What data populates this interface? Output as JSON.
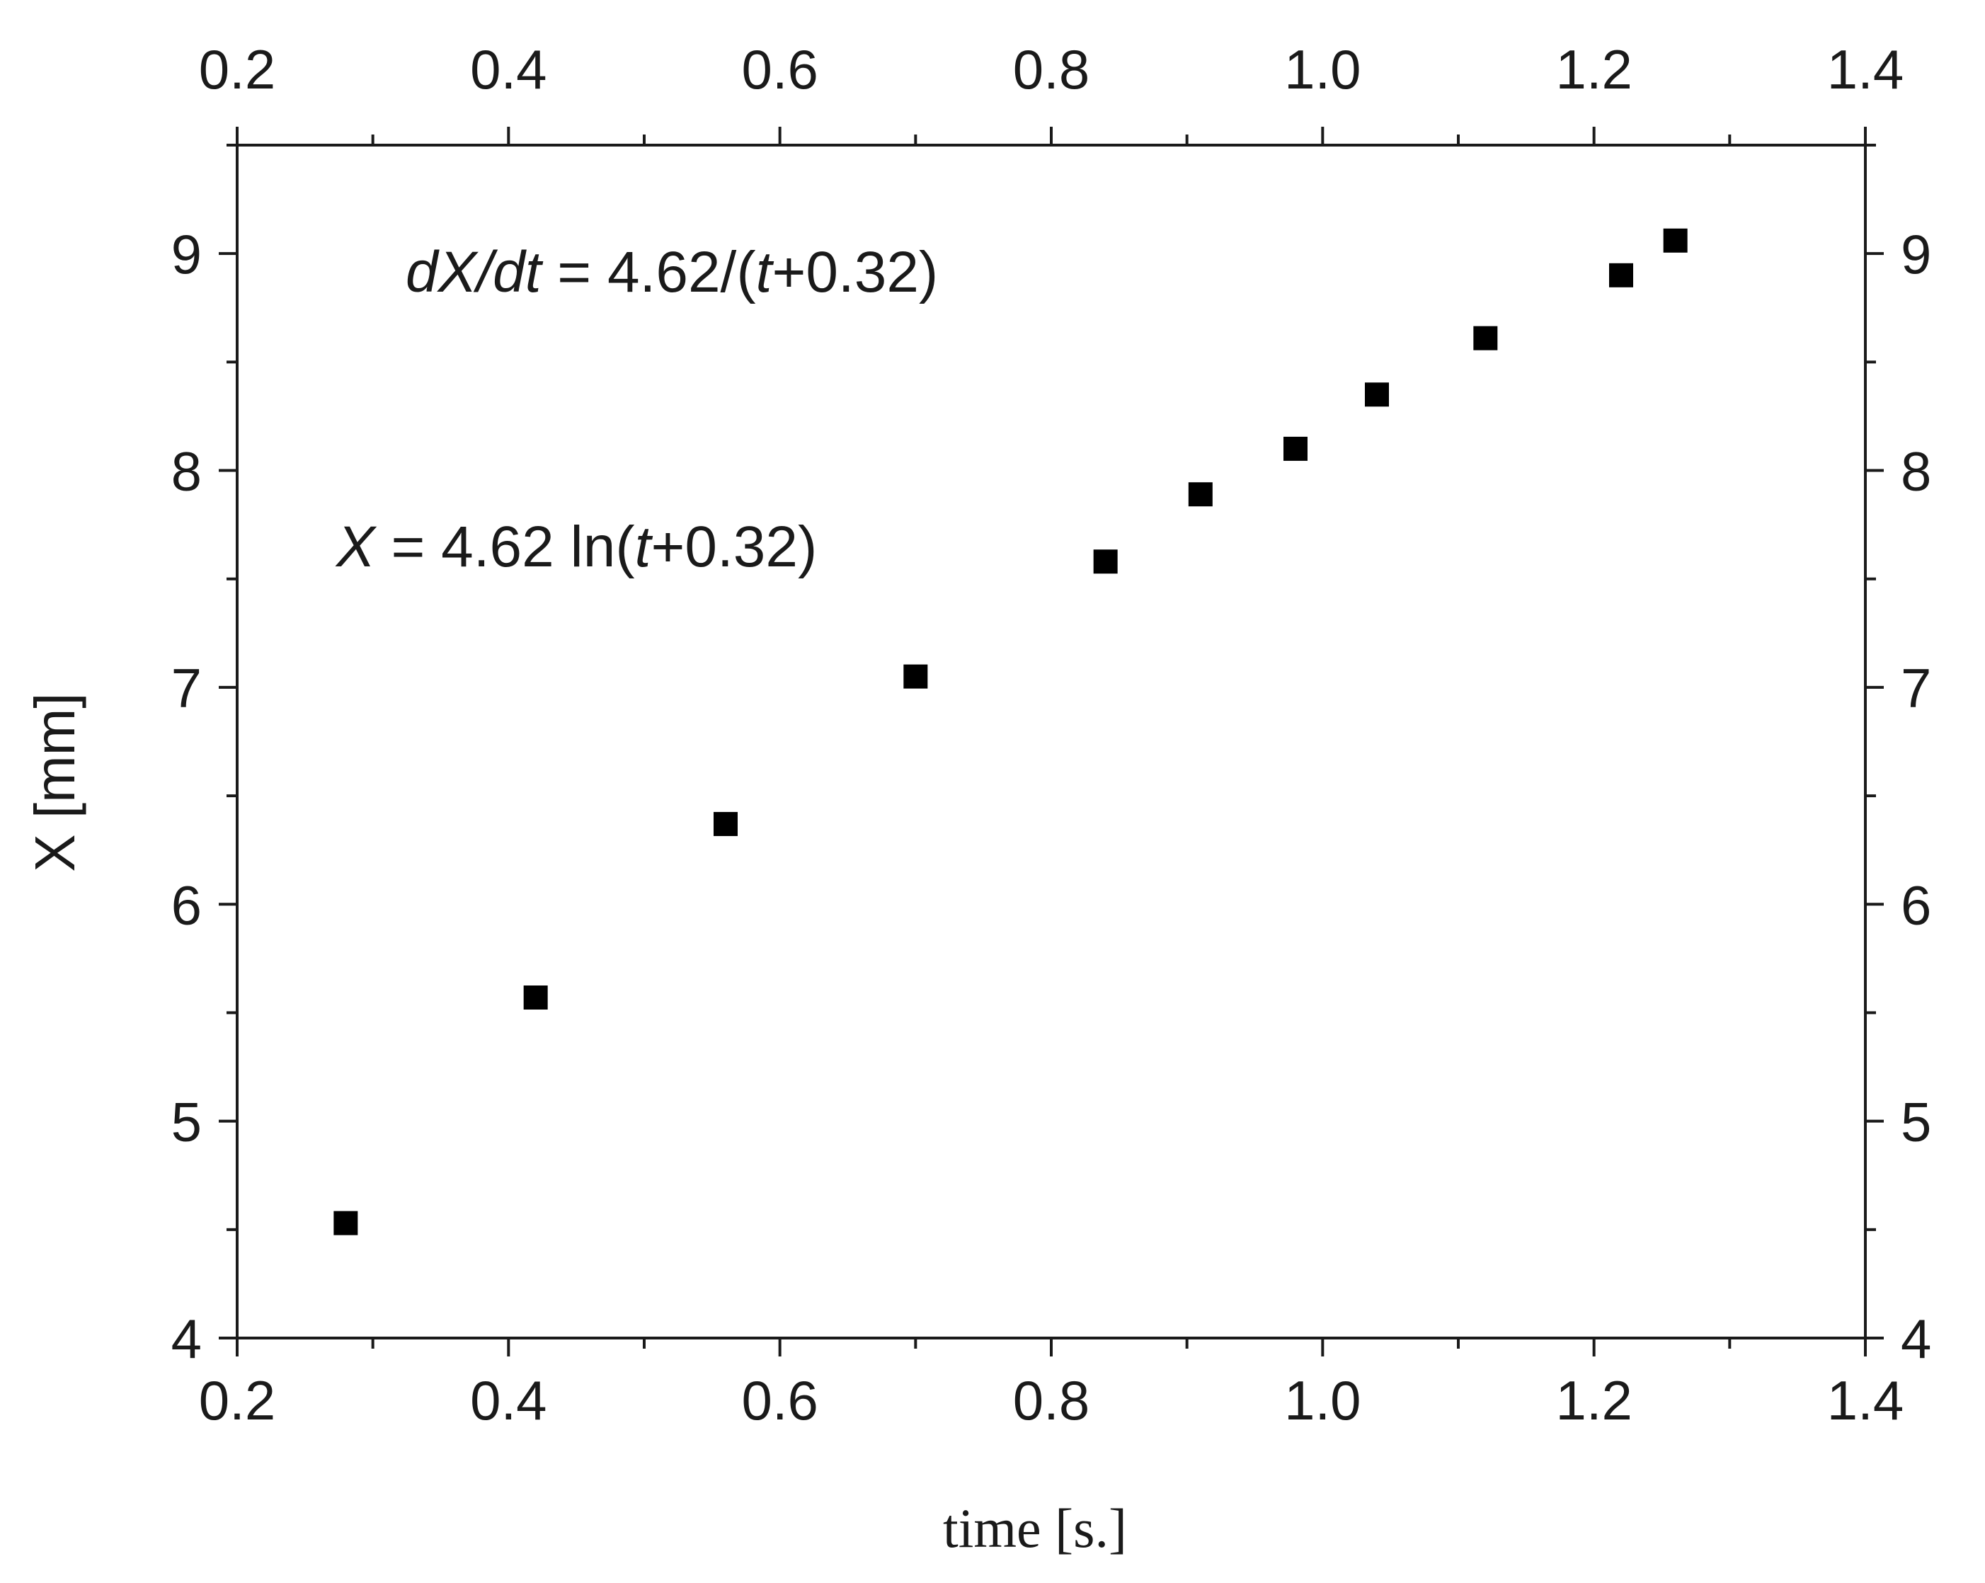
{
  "chart_data": {
    "type": "scatter",
    "title": "",
    "xlabel": "time [s.]",
    "ylabel": "X [mm]",
    "xlim": [
      0.2,
      1.4
    ],
    "ylim": [
      4,
      9.5
    ],
    "x_ticks": [
      "0.2",
      "0.4",
      "0.6",
      "0.8",
      "1.0",
      "1.2",
      "1.4"
    ],
    "x_top_ticks": [
      "0.2",
      "0.4",
      "0.6",
      "0.8",
      "1.0",
      "1.2",
      "1.4"
    ],
    "y_ticks": [
      "4",
      "5",
      "6",
      "7",
      "8",
      "9"
    ],
    "y_right_ticks": [
      "4",
      "5",
      "6",
      "7",
      "8",
      "9"
    ],
    "marker": "square",
    "marker_color": "#000000",
    "series": [
      {
        "x": [
          0.28,
          0.42,
          0.56,
          0.7,
          0.84,
          0.91,
          0.98,
          1.04,
          1.12,
          1.22,
          1.26
        ],
        "y": [
          4.53,
          5.57,
          6.37,
          7.05,
          7.58,
          7.89,
          8.1,
          8.35,
          8.61,
          8.9,
          9.06
        ]
      }
    ],
    "annotations": {
      "derivative": {
        "d_x": "dX",
        "slash": "/",
        "d_t": "dt",
        "rest_a": " = 4.62/(",
        "t": "t",
        "rest_b": "+0.32)"
      },
      "function": {
        "x": "X",
        "rest_a": " = 4.62 ln(",
        "t": "t",
        "rest_b": "+0.32)"
      }
    },
    "grid": false,
    "legend": "none"
  }
}
